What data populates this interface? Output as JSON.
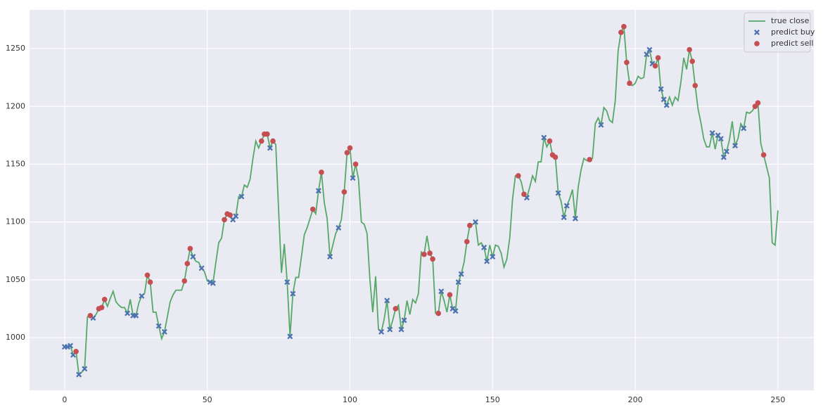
{
  "chart_data": {
    "type": "line",
    "xlim": [
      -12.3,
      262.6
    ],
    "ylim": [
      954.4,
      1283.5
    ],
    "xticks": [
      0,
      50,
      100,
      150,
      200,
      250
    ],
    "yticks": [
      1000,
      1050,
      1100,
      1150,
      1200,
      1250
    ],
    "grid": true,
    "legend": "upper right",
    "series": [
      {
        "name": "true close",
        "color": "#55a868",
        "marker": "line",
        "x": [
          0,
          1,
          2,
          3,
          4,
          5,
          6,
          7,
          8,
          9,
          10,
          11,
          12,
          13,
          14,
          15,
          16,
          17,
          18,
          19,
          20,
          21,
          22,
          23,
          24,
          25,
          26,
          27,
          28,
          29,
          30,
          31,
          32,
          33,
          34,
          35,
          36,
          37,
          38,
          39,
          40,
          41,
          42,
          43,
          44,
          45,
          46,
          47,
          48,
          49,
          50,
          51,
          52,
          53,
          54,
          55,
          56,
          57,
          58,
          59,
          60,
          61,
          62,
          63,
          64,
          65,
          66,
          67,
          68,
          69,
          70,
          71,
          72,
          73,
          74,
          75,
          76,
          77,
          78,
          79,
          80,
          81,
          82,
          83,
          84,
          85,
          86,
          87,
          88,
          89,
          90,
          91,
          92,
          93,
          94,
          95,
          96,
          97,
          98,
          99,
          100,
          101,
          102,
          103,
          104,
          105,
          106,
          107,
          108,
          109,
          110,
          111,
          112,
          113,
          114,
          115,
          116,
          117,
          118,
          119,
          120,
          121,
          122,
          123,
          124,
          125,
          126,
          127,
          128,
          129,
          130,
          131,
          132,
          133,
          134,
          135,
          136,
          137,
          138,
          139,
          140,
          141,
          142,
          143,
          144,
          145,
          146,
          147,
          148,
          149,
          150,
          151,
          152,
          153,
          154,
          155,
          156,
          157,
          158,
          159,
          160,
          161,
          162,
          163,
          164,
          165,
          166,
          167,
          168,
          169,
          170,
          171,
          172,
          173,
          174,
          175,
          176,
          177,
          178,
          179,
          180,
          181,
          182,
          183,
          184,
          185,
          186,
          187,
          188,
          189,
          190,
          191,
          192,
          193,
          194,
          195,
          196,
          197,
          198,
          199,
          200,
          201,
          202,
          203,
          204,
          205,
          206,
          207,
          208,
          209,
          210,
          211,
          212,
          213,
          214,
          215,
          216,
          217,
          218,
          219,
          220,
          221,
          222,
          223,
          224,
          225,
          226,
          227,
          228,
          229,
          230,
          231,
          232,
          233,
          234,
          235,
          236,
          237,
          238,
          239,
          240,
          241,
          242,
          243,
          244,
          245,
          246,
          247,
          248,
          249,
          250
        ],
        "values": [
          992,
          992,
          993,
          985,
          988,
          968,
          970,
          973,
          1018,
          1019,
          1017,
          1020,
          1025,
          1026,
          1033,
          1027,
          1034,
          1040,
          1031,
          1028,
          1026,
          1026,
          1021,
          1033,
          1019,
          1019,
          1030,
          1036,
          1038,
          1054,
          1048,
          1022,
          1022,
          1010,
          999,
          1005,
          1018,
          1031,
          1037,
          1041,
          1041,
          1041,
          1049,
          1064,
          1077,
          1070,
          1066,
          1065,
          1060,
          1057,
          1049,
          1048,
          1047,
          1065,
          1082,
          1086,
          1102,
          1107,
          1106,
          1102,
          1105,
          1122,
          1122,
          1132,
          1130,
          1137,
          1155,
          1170,
          1164,
          1170,
          1176,
          1176,
          1164,
          1170,
          1167,
          1110,
          1056,
          1081,
          1048,
          1001,
          1038,
          1052,
          1052,
          1070,
          1089,
          1095,
          1103,
          1111,
          1107,
          1127,
          1143,
          1117,
          1103,
          1070,
          1080,
          1090,
          1095,
          1102,
          1126,
          1160,
          1164,
          1138,
          1150,
          1137,
          1100,
          1098,
          1090,
          1050,
          1022,
          1053,
          1007,
          1005,
          1016,
          1032,
          1007,
          1015,
          1025,
          1028,
          1007,
          1015,
          1032,
          1020,
          1033,
          1030,
          1038,
          1074,
          1072,
          1088,
          1073,
          1068,
          1021,
          1021,
          1040,
          1032,
          1022,
          1037,
          1025,
          1023,
          1048,
          1055,
          1065,
          1083,
          1097,
          1098,
          1100,
          1080,
          1082,
          1078,
          1066,
          1080,
          1070,
          1080,
          1079,
          1073,
          1061,
          1068,
          1086,
          1120,
          1140,
          1140,
          1135,
          1124,
          1121,
          1130,
          1140,
          1135,
          1152,
          1152,
          1173,
          1165,
          1170,
          1158,
          1156,
          1125,
          1118,
          1104,
          1114,
          1120,
          1128,
          1103,
          1130,
          1145,
          1155,
          1153,
          1154,
          1155,
          1185,
          1190,
          1184,
          1199,
          1196,
          1188,
          1186,
          1205,
          1248,
          1264,
          1269,
          1238,
          1220,
          1218,
          1220,
          1226,
          1224,
          1225,
          1245,
          1249,
          1237,
          1235,
          1242,
          1215,
          1206,
          1201,
          1208,
          1201,
          1208,
          1205,
          1221,
          1242,
          1232,
          1249,
          1239,
          1218,
          1198,
          1186,
          1172,
          1165,
          1165,
          1177,
          1163,
          1175,
          1172,
          1156,
          1161,
          1171,
          1187,
          1166,
          1172,
          1185,
          1181,
          1195,
          1194,
          1196,
          1200,
          1203,
          1168,
          1158,
          1148,
          1138,
          1082,
          1080,
          1110
        ]
      },
      {
        "name": "predict buy",
        "color": "#4c72b0",
        "marker": "x",
        "x": [
          0,
          1,
          2,
          3,
          5,
          7,
          10,
          22,
          24,
          25,
          27,
          33,
          35,
          45,
          48,
          51,
          52,
          59,
          60,
          62,
          72,
          78,
          79,
          80,
          89,
          93,
          96,
          101,
          111,
          113,
          114,
          118,
          119,
          132,
          136,
          137,
          138,
          139,
          144,
          147,
          148,
          150,
          162,
          168,
          173,
          175,
          176,
          179,
          188,
          204,
          205,
          206,
          209,
          210,
          211,
          227,
          229,
          230,
          231,
          232,
          235,
          238
        ],
        "values": [
          992,
          992,
          993,
          985,
          968,
          973,
          1017,
          1021,
          1019,
          1019,
          1036,
          1010,
          1005,
          1070,
          1060,
          1048,
          1047,
          1102,
          1105,
          1122,
          1164,
          1048,
          1001,
          1038,
          1127,
          1070,
          1095,
          1138,
          1005,
          1032,
          1007,
          1007,
          1015,
          1040,
          1025,
          1023,
          1048,
          1055,
          1100,
          1078,
          1066,
          1070,
          1121,
          1173,
          1125,
          1104,
          1114,
          1103,
          1184,
          1245,
          1249,
          1237,
          1215,
          1206,
          1201,
          1177,
          1175,
          1172,
          1156,
          1161,
          1166,
          1181
        ]
      },
      {
        "name": "predict sell",
        "color": "#c44e52",
        "marker": "o",
        "x": [
          4,
          9,
          12,
          13,
          14,
          29,
          30,
          42,
          43,
          44,
          56,
          57,
          58,
          69,
          70,
          71,
          73,
          87,
          90,
          98,
          99,
          100,
          102,
          116,
          126,
          128,
          129,
          131,
          135,
          141,
          142,
          159,
          161,
          170,
          171,
          172,
          184,
          195,
          196,
          197,
          198,
          207,
          208,
          219,
          220,
          221,
          242,
          243,
          245
        ],
        "values": [
          988,
          1019,
          1025,
          1026,
          1033,
          1054,
          1048,
          1049,
          1064,
          1077,
          1102,
          1107,
          1106,
          1170,
          1176,
          1176,
          1170,
          1111,
          1143,
          1126,
          1160,
          1164,
          1150,
          1025,
          1072,
          1073,
          1068,
          1021,
          1037,
          1083,
          1097,
          1140,
          1124,
          1170,
          1158,
          1156,
          1154,
          1264,
          1269,
          1238,
          1220,
          1235,
          1242,
          1249,
          1239,
          1218,
          1200,
          1203,
          1158
        ]
      }
    ]
  }
}
